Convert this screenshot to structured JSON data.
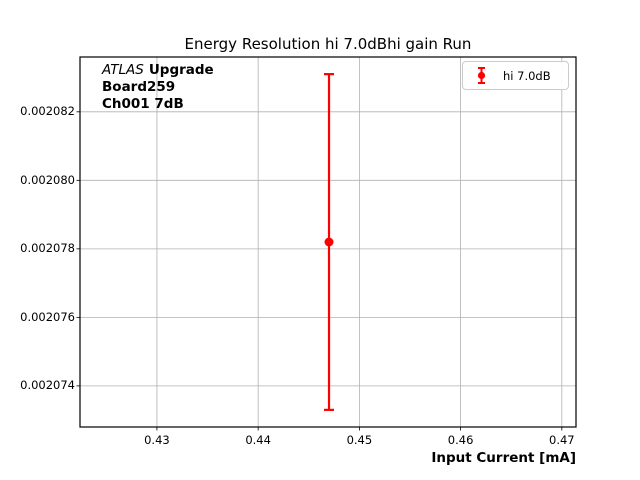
{
  "chart_data": {
    "type": "scatter",
    "subtype": "errorbar",
    "title": "Energy Resolution hi 7.0dBhi gain Run",
    "xlabel": "Input Current [mA]",
    "xlim": [
      0.4224,
      0.4714
    ],
    "ylim": [
      0.0020728,
      0.0020836
    ],
    "xticks": [
      0.43,
      0.44,
      0.45,
      0.46,
      0.47
    ],
    "xtick_labels": [
      "0.43",
      "0.44",
      "0.45",
      "0.46",
      "0.47"
    ],
    "yticks": [
      0.002074,
      0.002076,
      0.002078,
      0.00208,
      0.002082
    ],
    "ytick_labels": [
      "0.002074",
      "0.002076",
      "0.002078",
      "0.002080",
      "0.002082"
    ],
    "grid": true,
    "legend": {
      "position": "upper right",
      "entries": [
        {
          "label": "hi 7.0dB",
          "color": "#ff0000",
          "marker": "errorbar-point"
        }
      ]
    },
    "series": [
      {
        "name": "hi 7.0dB",
        "color": "#ff0000",
        "points": [
          {
            "x": 0.447,
            "y": 0.0020782,
            "yerr": 4.9e-06
          }
        ]
      }
    ],
    "annotation": {
      "experiment": "ATLAS",
      "qualifier": "Upgrade",
      "board": "Board259",
      "channel": "Ch001 7dB"
    },
    "colors": {
      "series": "#ff0000",
      "grid": "#b0b0b0",
      "frame": "#000000",
      "background": "#ffffff",
      "legend_border": "#cccccc"
    }
  }
}
